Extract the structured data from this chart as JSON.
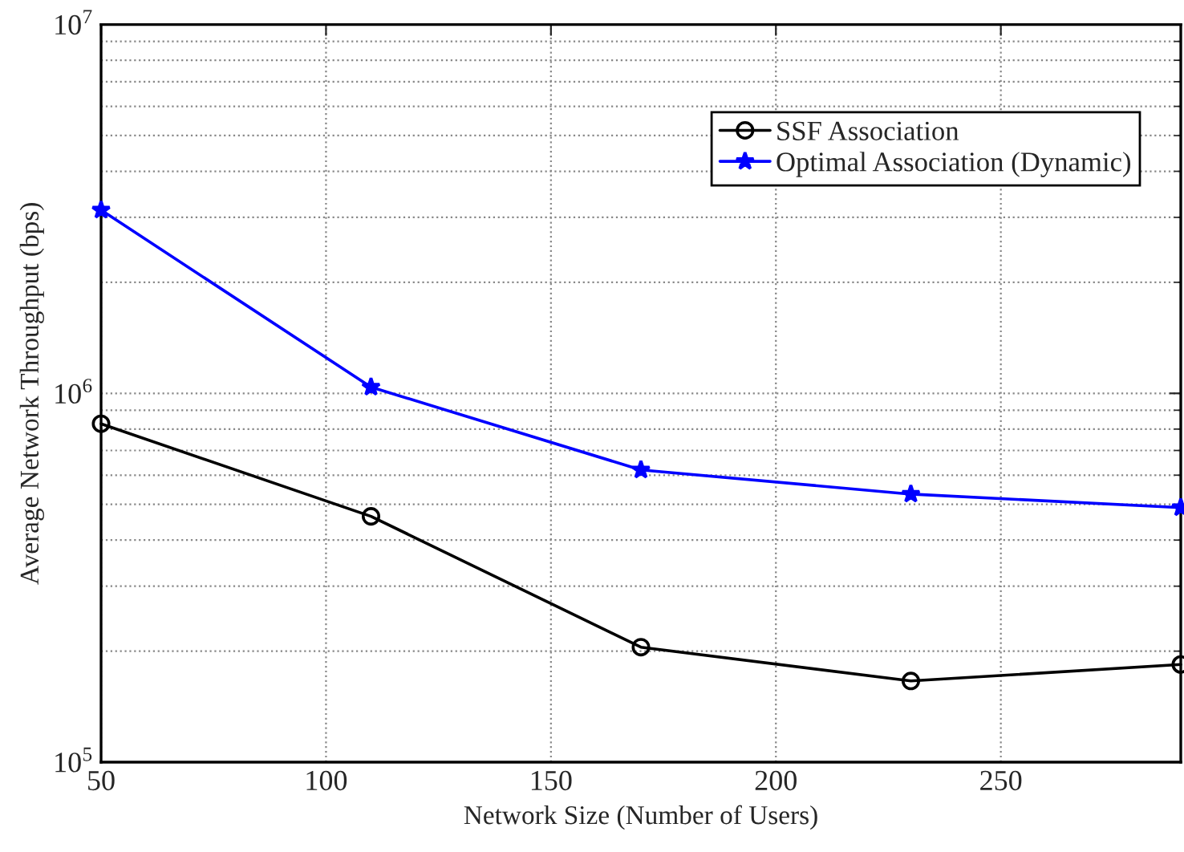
{
  "chart_data": {
    "type": "line",
    "xlabel": "Network Size (Number of Users)",
    "ylabel": "Average Network Throughput (bps)",
    "x": [
      50,
      110,
      170,
      230,
      290
    ],
    "series": [
      {
        "name": "SSF Association",
        "color": "#000000",
        "marker": "circle",
        "values": [
          827000,
          464000,
          205000,
          166000,
          184000
        ]
      },
      {
        "name": "Optimal Association (Dynamic)",
        "color": "#0000ff",
        "marker": "star",
        "values": [
          3140000,
          1040000,
          620000,
          533000,
          490000
        ]
      }
    ],
    "xlim": [
      50,
      290
    ],
    "xticks": [
      50,
      100,
      150,
      200,
      250
    ],
    "ylim": [
      100000,
      10000000
    ],
    "log": true,
    "yticks": [
      {
        "value": 100000,
        "label": "10$^{5}$"
      },
      {
        "value": 1000000,
        "label": "10$^{6}$"
      },
      {
        "value": 10000000,
        "label": "10$^{7}$"
      }
    ],
    "grid": true,
    "legend": "top right",
    "line_style": "solid"
  }
}
